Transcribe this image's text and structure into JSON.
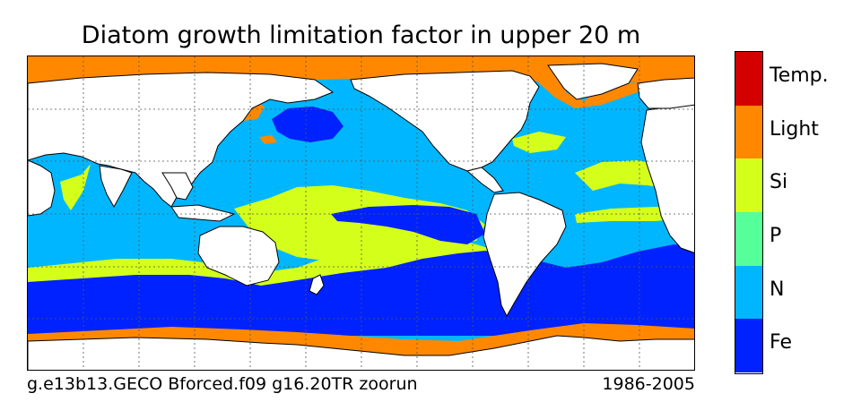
{
  "title": "Diatom growth limitation factor in upper 20 m",
  "footer": {
    "run_id": "g.e13b13.GECO Bforced.f09 g16.20TR zoorun",
    "period": "1986-2005"
  },
  "legend": {
    "items": [
      {
        "label": "Temp.",
        "color": "#d40000"
      },
      {
        "label": "Light",
        "color": "#ff8800"
      },
      {
        "label": "Si",
        "color": "#d4ff1a"
      },
      {
        "label": "P",
        "color": "#55ff99"
      },
      {
        "label": "N",
        "color": "#00b7ff"
      },
      {
        "label": "Fe",
        "color": "#0022ff"
      }
    ]
  },
  "colors": {
    "land": "#ffffff",
    "coast": "#000000",
    "grid": "#555555"
  }
}
